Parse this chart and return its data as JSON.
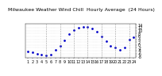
{
  "title": "Milwaukee Weather Wind Chill  Hourly Average  (24 Hours)",
  "hours": [
    1,
    2,
    3,
    4,
    5,
    6,
    7,
    8,
    9,
    10,
    11,
    12,
    13,
    14,
    15,
    16,
    17,
    18,
    19,
    20,
    21,
    22,
    23,
    24
  ],
  "wind_chill": [
    -4.5,
    -5.2,
    -6.0,
    -6.8,
    -7.5,
    -7.0,
    -3.5,
    -0.5,
    3.0,
    7.5,
    10.5,
    12.2,
    12.8,
    12.5,
    11.5,
    9.0,
    6.0,
    2.5,
    -0.5,
    -2.0,
    -3.5,
    -1.5,
    3.5,
    5.5
  ],
  "dot_color": "#0000cc",
  "bg_color": "#ffffff",
  "ylim_min": -9,
  "ylim_max": 15,
  "ytick_values": [
    -8,
    -6,
    -4,
    -2,
    0,
    2,
    4,
    6,
    8,
    10,
    12,
    14
  ],
  "vline_hours": [
    5,
    8,
    11,
    14,
    17,
    20,
    23
  ],
  "title_fontsize": 4.5,
  "tick_fontsize": 3.5,
  "markersize": 1.0
}
